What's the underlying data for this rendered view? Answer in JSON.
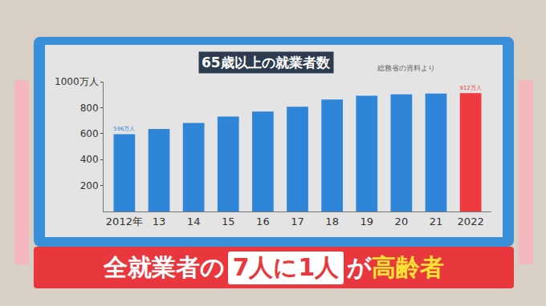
{
  "chart_data": {
    "type": "bar",
    "title": "65歳以上の就業者数",
    "annotations": [
      "総務省の資料より"
    ],
    "banner": [
      "全就業者の",
      "7人に1人",
      "が",
      "高齢者"
    ],
    "categories": [
      "2012年",
      "13",
      "14",
      "15",
      "16",
      "17",
      "18",
      "19",
      "20",
      "21",
      "2022"
    ],
    "values": [
      596,
      636,
      682,
      732,
      770,
      807,
      862,
      892,
      903,
      909,
      912
    ],
    "value_labels": [
      "596万人",
      null,
      null,
      null,
      null,
      null,
      null,
      null,
      null,
      null,
      "912万人"
    ],
    "data_labels": true,
    "colors": [
      "#2f86d9",
      "#2f86d9",
      "#2f86d9",
      "#2f86d9",
      "#2f86d9",
      "#2f86d9",
      "#2f86d9",
      "#2f86d9",
      "#2f86d9",
      "#2f86d9",
      "#ef3b3f"
    ],
    "ylim": [
      0,
      1000
    ],
    "yticks": [
      200,
      400,
      600,
      800,
      {
        "value": 1000,
        "label": "1000万人"
      }
    ],
    "grid": false
  }
}
